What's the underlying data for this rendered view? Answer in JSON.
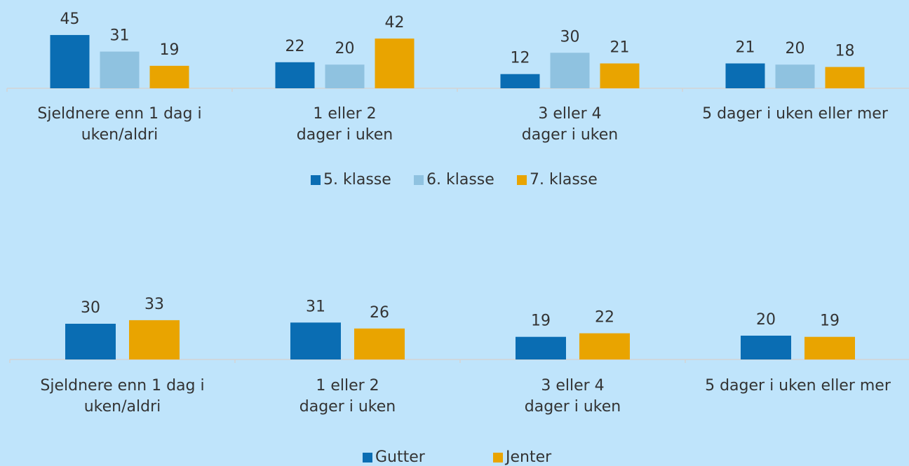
{
  "chart_data": [
    {
      "type": "bar",
      "categories": [
        [
          "Sjeldnere enn 1 dag i",
          "uken/aldri"
        ],
        [
          "1 eller 2",
          "dager i uken"
        ],
        [
          "3 eller 4",
          "dager i uken"
        ],
        [
          "5 dager i uken eller mer"
        ]
      ],
      "series": [
        {
          "name": "5. klasse",
          "color": "#0a6db3",
          "values": [
            45,
            22,
            12,
            21
          ]
        },
        {
          "name": "6. klasse",
          "color": "#8fc2e0",
          "values": [
            31,
            20,
            30,
            20
          ]
        },
        {
          "name": "7. klasse",
          "color": "#e9a400",
          "values": [
            19,
            42,
            21,
            18
          ]
        }
      ]
    },
    {
      "type": "bar",
      "categories": [
        [
          "Sjeldnere enn 1 dag i",
          "uken/aldri"
        ],
        [
          "1 eller 2",
          "dager i uken"
        ],
        [
          "3 eller 4",
          "dager i uken"
        ],
        [
          "5 dager i uken eller mer"
        ]
      ],
      "series": [
        {
          "name": "Gutter",
          "color": "#0a6db3",
          "values": [
            30,
            31,
            19,
            20
          ]
        },
        {
          "name": "Jenter",
          "color": "#e9a400",
          "values": [
            33,
            26,
            22,
            19
          ]
        }
      ]
    }
  ]
}
